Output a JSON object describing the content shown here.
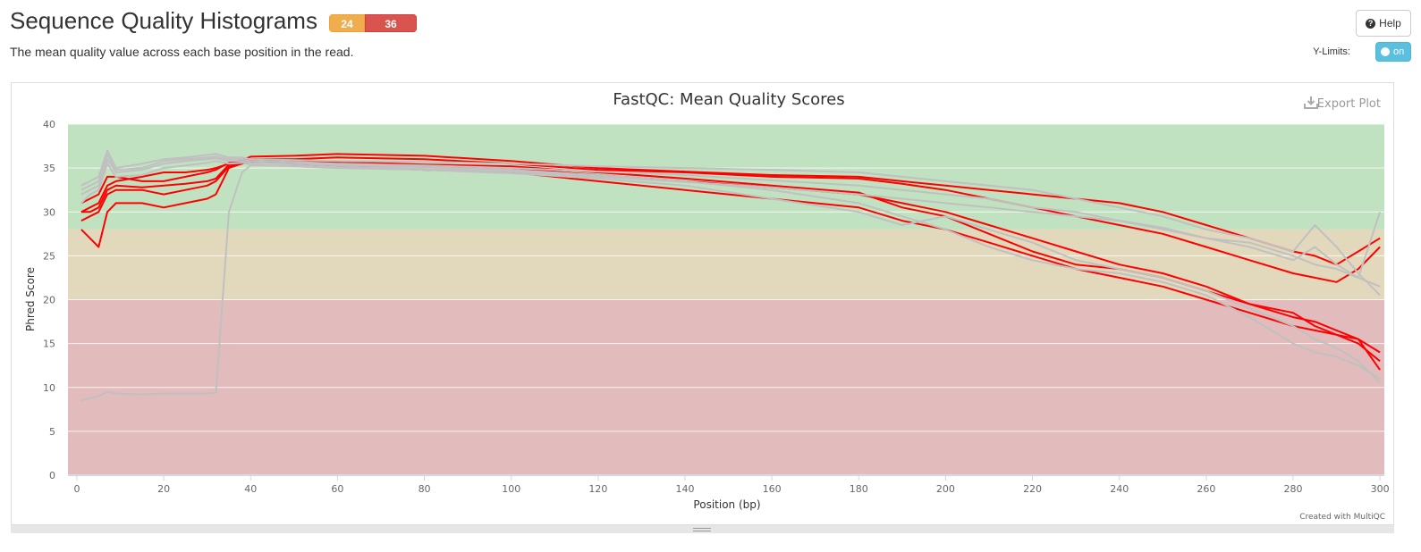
{
  "header": {
    "title": "Sequence Quality Histograms",
    "badge_warn": "24",
    "badge_fail": "36",
    "description": "The mean quality value across each base position in the read.",
    "help_label": "Help",
    "ylimits_label": "Y-Limits:",
    "ylimits_toggle": "on"
  },
  "plot": {
    "export_label": "Export Plot",
    "credit": "Created with MultiQC"
  },
  "colors": {
    "pass_band": "#c0e2c0",
    "warn_band": "#e2d9bd",
    "fail_band": "#e2bcbc",
    "fail_series": "#ff0000",
    "other_series": "#c0c0c0",
    "badge_warn": "#f0ad4e",
    "badge_fail": "#d9534f",
    "toggle": "#5bc0de"
  },
  "chart_data": {
    "type": "line",
    "title": "FastQC: Mean Quality Scores",
    "xlabel": "Position (bp)",
    "ylabel": "Phred Score",
    "xlim": [
      0,
      301
    ],
    "ylim": [
      0,
      40
    ],
    "xticks": [
      0,
      20,
      40,
      60,
      80,
      100,
      120,
      140,
      160,
      180,
      200,
      220,
      240,
      260,
      280,
      300
    ],
    "yticks": [
      0,
      5,
      10,
      15,
      20,
      25,
      30,
      35,
      40
    ],
    "grid": true,
    "legend": "none",
    "bands": [
      {
        "from": 28,
        "to": 40,
        "label": "pass"
      },
      {
        "from": 20,
        "to": 28,
        "label": "warn"
      },
      {
        "from": 0,
        "to": 20,
        "label": "fail"
      }
    ],
    "x": [
      1,
      3,
      5,
      7,
      9,
      15,
      20,
      25,
      30,
      32,
      35,
      38,
      40,
      50,
      60,
      80,
      100,
      120,
      140,
      160,
      180,
      190,
      200,
      210,
      220,
      230,
      240,
      250,
      260,
      270,
      280,
      285,
      290,
      295,
      300
    ],
    "series": [
      {
        "color": "red",
        "values": [
          30,
          30.5,
          31,
          33,
          33.5,
          34,
          34.5,
          34.5,
          34.8,
          35,
          35.5,
          35.8,
          36,
          36,
          36.2,
          36,
          35.5,
          34.8,
          34.5,
          34,
          33.8,
          33.2,
          32.5,
          31.5,
          30.5,
          29.5,
          28.5,
          27.5,
          26,
          24.5,
          23,
          22.5,
          22,
          23.5,
          26
        ]
      },
      {
        "color": "red",
        "values": [
          28,
          27,
          26,
          30,
          31,
          31,
          30.5,
          31,
          31.5,
          32,
          35,
          35.5,
          35.7,
          35.5,
          35.2,
          34.8,
          34.5,
          33.5,
          32.5,
          31.5,
          30.5,
          29,
          28,
          26.5,
          25,
          23.5,
          22.5,
          21.5,
          20,
          18.5,
          17,
          16.5,
          16,
          15,
          13
        ]
      },
      {
        "color": "red",
        "values": [
          29,
          29.5,
          30,
          32,
          32.5,
          32.5,
          32,
          32.5,
          33,
          33.5,
          35.2,
          35.5,
          35.8,
          35.8,
          35.6,
          35.3,
          35,
          34.2,
          33.5,
          32.8,
          32,
          31,
          30,
          28.5,
          27,
          25.5,
          24,
          23,
          21.5,
          19.5,
          18,
          17.5,
          16.5,
          15.5,
          14
        ]
      },
      {
        "color": "red",
        "values": [
          31,
          31.5,
          32,
          34,
          34,
          33.5,
          33.5,
          34,
          34.5,
          34.8,
          35.6,
          35.9,
          36.3,
          36.4,
          36.6,
          36.4,
          35.8,
          35,
          34.6,
          34.2,
          34,
          33.5,
          33,
          32.5,
          32,
          31.5,
          31,
          30,
          28.5,
          27,
          25.5,
          25,
          24,
          25.5,
          27
        ]
      },
      {
        "color": "red",
        "values": [
          30,
          30,
          30.5,
          32.5,
          33,
          32.8,
          33,
          33.2,
          33.5,
          33.8,
          35.4,
          35.6,
          35.9,
          35.9,
          35.7,
          35.4,
          35.2,
          34.5,
          33.8,
          33,
          32.2,
          30.5,
          29.5,
          27.5,
          25.5,
          24,
          23.5,
          22.5,
          21,
          19.5,
          18.5,
          17,
          16,
          15.5,
          12
        ]
      },
      {
        "color": "gray",
        "values": [
          33,
          33.5,
          34,
          37,
          35,
          35.5,
          36,
          36.2,
          36.5,
          36.6,
          36.2,
          36.2,
          36,
          35.9,
          35.8,
          35.7,
          35.5,
          35.2,
          35,
          34.8,
          34.5,
          34,
          33.5,
          33,
          32.5,
          31.5,
          30.5,
          29.5,
          28,
          27,
          25.5,
          28.5,
          26,
          23,
          20.5
        ]
      },
      {
        "color": "gray",
        "values": [
          32,
          32.5,
          33,
          36,
          34.5,
          34.8,
          35.5,
          35.8,
          36,
          36.1,
          35.8,
          35.8,
          35.6,
          35.5,
          35.3,
          35.1,
          34.8,
          34.2,
          33.5,
          32.5,
          31,
          29.5,
          28,
          26,
          24.5,
          23.5,
          23,
          22,
          20.5,
          18,
          15,
          14,
          13.5,
          12.5,
          11
        ]
      },
      {
        "color": "gray",
        "values": [
          31,
          32,
          32.5,
          35.5,
          34,
          34.2,
          35,
          35.3,
          35.6,
          35.8,
          35.5,
          35.6,
          35.4,
          35.2,
          35,
          34.8,
          34.4,
          33.8,
          33,
          31.5,
          30,
          28.5,
          29.5,
          28,
          26.5,
          24.5,
          23.5,
          22.5,
          21,
          19,
          17,
          15.5,
          14.5,
          13,
          10.5
        ]
      },
      {
        "color": "gray",
        "values": [
          32.5,
          33,
          33.5,
          36.5,
          34.8,
          35,
          35.8,
          36,
          36.2,
          36.3,
          36,
          36,
          35.8,
          35.7,
          35.5,
          35.3,
          35,
          34.6,
          34.2,
          33.6,
          33,
          32.5,
          32,
          31.5,
          30.5,
          30,
          29,
          28.2,
          27,
          26,
          24.5,
          26,
          24,
          22.5,
          30
        ]
      },
      {
        "color": "gray",
        "values": [
          8.5,
          8.8,
          9,
          9.5,
          9.3,
          9.2,
          9.3,
          9.3,
          9.3,
          9.4,
          30,
          34.5,
          35.3,
          35.3,
          35.1,
          34.9,
          34.6,
          34,
          33.4,
          32.8,
          32,
          31.5,
          31,
          30.5,
          30,
          29.5,
          29,
          28,
          27,
          26.5,
          25,
          24,
          23.5,
          22.5,
          21.5
        ]
      }
    ]
  }
}
